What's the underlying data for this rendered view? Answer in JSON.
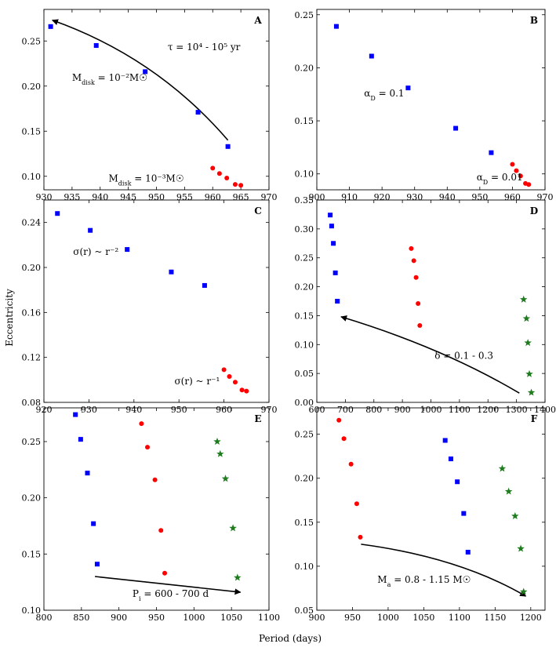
{
  "figure": {
    "xlabel": "Period (days)",
    "ylabel": "Eccentricity"
  },
  "colors": {
    "blue": "#0000ff",
    "red": "#ff0000",
    "green": "#1e7b1e",
    "axis": "#000000"
  },
  "chart_data": [
    {
      "type": "scatter",
      "panel": "A",
      "xlim": [
        930,
        970
      ],
      "ylim": [
        0.085,
        0.285
      ],
      "xticks": [
        930,
        935,
        940,
        945,
        950,
        955,
        960,
        965,
        970
      ],
      "yticks": [
        0.1,
        0.15,
        0.2,
        0.25
      ],
      "ytick_labels": [
        "0.10",
        "0.15",
        "0.20",
        "0.25"
      ],
      "series": [
        {
          "name": "blue",
          "marker": "square",
          "color": "#0000ff",
          "x": [
            931.2,
            939.3,
            948.0,
            957.4,
            962.7
          ],
          "y": [
            0.266,
            0.245,
            0.216,
            0.171,
            0.133
          ]
        },
        {
          "name": "red",
          "marker": "circle",
          "color": "#ff0000",
          "x": [
            960.0,
            961.2,
            962.5,
            964.0,
            965.0
          ],
          "y": [
            0.109,
            0.103,
            0.098,
            0.091,
            0.09
          ]
        }
      ],
      "arrows": [
        {
          "from": [
            962.7,
            0.14
          ],
          "to": [
            931.5,
            0.273
          ],
          "ctrl": [
            950.0,
            0.232
          ]
        }
      ],
      "annotations": [
        {
          "text": "τ = 10⁴ - 10⁵ yr",
          "x": 952.0,
          "y": 0.24
        },
        {
          "text": "Mdisk = 10⁻²M☉",
          "x": 935.0,
          "y": 0.206
        },
        {
          "text": "Mdisk = 10⁻³M☉",
          "x": 941.5,
          "y": 0.094
        }
      ]
    },
    {
      "type": "scatter",
      "panel": "B",
      "xlim": [
        900,
        970
      ],
      "ylim": [
        0.085,
        0.255
      ],
      "xticks": [
        900,
        910,
        920,
        930,
        940,
        950,
        960,
        970
      ],
      "yticks": [
        0.1,
        0.15,
        0.2,
        0.25
      ],
      "ytick_labels": [
        "0.10",
        "0.15",
        "0.20",
        "0.25"
      ],
      "series": [
        {
          "name": "blue",
          "marker": "square",
          "color": "#0000ff",
          "x": [
            906.0,
            916.8,
            928.0,
            942.6,
            953.5
          ],
          "y": [
            0.239,
            0.211,
            0.181,
            0.143,
            0.12
          ]
        },
        {
          "name": "red",
          "marker": "circle",
          "color": "#ff0000",
          "x": [
            960.0,
            961.2,
            962.5,
            964.0,
            965.0
          ],
          "y": [
            0.109,
            0.103,
            0.098,
            0.091,
            0.09
          ]
        }
      ],
      "annotations": [
        {
          "text": "αD = 0.1",
          "x": 914.5,
          "y": 0.173
        },
        {
          "text": "αD = 0.01",
          "x": 949.0,
          "y": 0.094
        }
      ]
    },
    {
      "type": "scatter",
      "panel": "C",
      "xlim": [
        920,
        970
      ],
      "ylim": [
        0.08,
        0.26
      ],
      "xticks": [
        920,
        930,
        940,
        950,
        960,
        970
      ],
      "yticks": [
        0.08,
        0.12,
        0.16,
        0.2,
        0.24
      ],
      "ytick_labels": [
        "0.08",
        "0.12",
        "0.16",
        "0.20",
        "0.24"
      ],
      "series": [
        {
          "name": "blue",
          "marker": "square",
          "color": "#0000ff",
          "x": [
            923.0,
            930.3,
            938.5,
            948.3,
            955.7
          ],
          "y": [
            0.248,
            0.233,
            0.216,
            0.196,
            0.184
          ]
        },
        {
          "name": "red",
          "marker": "circle",
          "color": "#ff0000",
          "x": [
            960.0,
            961.2,
            962.5,
            964.0,
            965.0
          ],
          "y": [
            0.109,
            0.103,
            0.098,
            0.091,
            0.09
          ]
        }
      ],
      "annotations": [
        {
          "text": "σ(r) ~ r⁻²",
          "x": 926.5,
          "y": 0.211
        },
        {
          "text": "σ(r) ~ r⁻¹",
          "x": 949.0,
          "y": 0.096
        }
      ]
    },
    {
      "type": "scatter",
      "panel": "D",
      "xlim": [
        600,
        1400
      ],
      "ylim": [
        0.0,
        0.35
      ],
      "xticks": [
        600,
        700,
        800,
        900,
        1000,
        1100,
        1200,
        1300,
        1400
      ],
      "yticks": [
        0.0,
        0.05,
        0.1,
        0.15,
        0.2,
        0.25,
        0.3,
        0.35
      ],
      "ytick_labels": [
        "0.00",
        "0.05",
        "0.10",
        "0.15",
        "0.20",
        "0.25",
        "0.30",
        "0.35"
      ],
      "series": [
        {
          "name": "blue",
          "marker": "square",
          "color": "#0000ff",
          "x": [
            647,
            652,
            658,
            665,
            672
          ],
          "y": [
            0.324,
            0.305,
            0.275,
            0.224,
            0.175
          ]
        },
        {
          "name": "red",
          "marker": "circle",
          "color": "#ff0000",
          "x": [
            931,
            940,
            948,
            955,
            961
          ],
          "y": [
            0.266,
            0.245,
            0.216,
            0.171,
            0.133
          ]
        },
        {
          "name": "green",
          "marker": "star",
          "color": "#1e7b1e",
          "x": [
            1325,
            1335,
            1340,
            1345,
            1352
          ],
          "y": [
            0.178,
            0.145,
            0.103,
            0.049,
            0.017
          ]
        }
      ],
      "arrows": [
        {
          "from": [
            1310,
            0.016
          ],
          "to": [
            685,
            0.148
          ],
          "ctrl": [
            1040,
            0.095
          ]
        }
      ],
      "annotations": [
        {
          "text": "δ = 0.1 - 0.3",
          "x": 1013,
          "y": 0.075
        }
      ]
    },
    {
      "type": "scatter",
      "panel": "E",
      "xlim": [
        800,
        1100
      ],
      "ylim": [
        0.1,
        0.28
      ],
      "xticks": [
        800,
        850,
        900,
        950,
        1000,
        1050,
        1100
      ],
      "yticks": [
        0.1,
        0.15,
        0.2,
        0.25
      ],
      "ytick_labels": [
        "0.10",
        "0.15",
        "0.20",
        "0.25"
      ],
      "series": [
        {
          "name": "blue",
          "marker": "square",
          "color": "#0000ff",
          "x": [
            842,
            849,
            858,
            866,
            871
          ],
          "y": [
            0.274,
            0.252,
            0.222,
            0.177,
            0.141
          ]
        },
        {
          "name": "red",
          "marker": "circle",
          "color": "#ff0000",
          "x": [
            930,
            938,
            948,
            956,
            961
          ],
          "y": [
            0.266,
            0.245,
            0.216,
            0.171,
            0.133
          ]
        },
        {
          "name": "green",
          "marker": "star",
          "color": "#1e7b1e",
          "x": [
            1031,
            1035,
            1042,
            1052,
            1058
          ],
          "y": [
            0.25,
            0.239,
            0.217,
            0.173,
            0.129
          ]
        }
      ],
      "arrows": [
        {
          "from": [
            868,
            0.13
          ],
          "to": [
            1062,
            0.116
          ]
        }
      ],
      "annotations": [
        {
          "text": "Pi = 600 - 700 d",
          "x": 918,
          "y": 0.112
        }
      ]
    },
    {
      "type": "scatter",
      "panel": "F",
      "xlim": [
        900,
        1220
      ],
      "ylim": [
        0.05,
        0.28
      ],
      "xticks": [
        900,
        950,
        1000,
        1050,
        1100,
        1150,
        1200
      ],
      "yticks": [
        0.05,
        0.1,
        0.15,
        0.2,
        0.25
      ],
      "ytick_labels": [
        "0.05",
        "0.10",
        "0.15",
        "0.20",
        "0.25"
      ],
      "series": [
        {
          "name": "red",
          "marker": "circle",
          "color": "#ff0000",
          "x": [
            931,
            938,
            948,
            956,
            961
          ],
          "y": [
            0.266,
            0.245,
            0.216,
            0.171,
            0.133
          ]
        },
        {
          "name": "blue",
          "marker": "square",
          "color": "#0000ff",
          "x": [
            1080,
            1088,
            1097,
            1106,
            1112
          ],
          "y": [
            0.243,
            0.222,
            0.196,
            0.16,
            0.116
          ]
        },
        {
          "name": "green",
          "marker": "star",
          "color": "#1e7b1e",
          "x": [
            1160,
            1169,
            1178,
            1186,
            1190
          ],
          "y": [
            0.211,
            0.185,
            0.157,
            0.12,
            0.071
          ]
        }
      ],
      "arrows": [
        {
          "from": [
            962,
            0.125
          ],
          "to": [
            1193,
            0.066
          ],
          "ctrl": [
            1100,
            0.11
          ]
        }
      ],
      "annotations": [
        {
          "text": "Ma = 0.8 - 1.15 M☉",
          "x": 985,
          "y": 0.081
        }
      ]
    }
  ]
}
